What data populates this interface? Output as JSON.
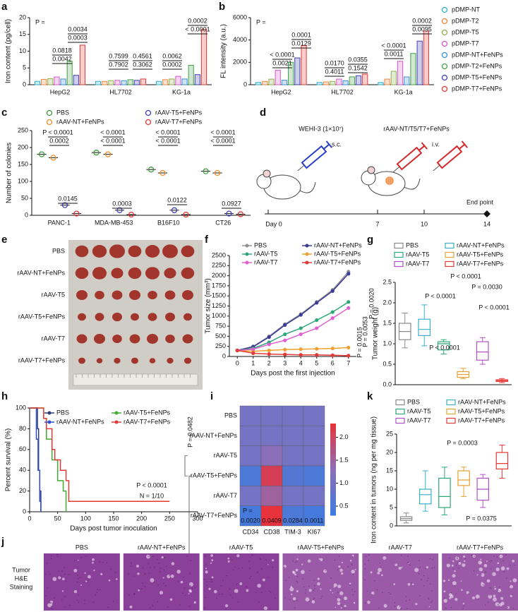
{
  "chart_data": [
    {
      "type": "bar",
      "label": "a",
      "ylabel": "Iron content (pg/cell)",
      "categories": [
        "HepG2",
        "HL7702",
        "KG-1a"
      ],
      "series": [
        {
          "color": "#2fb0cf",
          "values": [
            1.0,
            1.0,
            1.0
          ]
        },
        {
          "color": "#f0883e",
          "values": [
            1.6,
            1.0,
            1.5
          ]
        },
        {
          "color": "#8fae4f",
          "values": [
            1.8,
            1.2,
            1.7
          ]
        },
        {
          "color": "#d65ac8",
          "values": [
            2.3,
            1.3,
            2.5
          ]
        },
        {
          "color": "#3a8fd5",
          "values": [
            1.7,
            1.2,
            1.7
          ]
        },
        {
          "color": "#43a047",
          "values": [
            7.0,
            1.5,
            5.8
          ]
        },
        {
          "color": "#3f3fb5",
          "values": [
            2.8,
            1.3,
            3.0
          ]
        },
        {
          "color": "#e53935",
          "values": [
            11.8,
            1.7,
            16.5
          ]
        }
      ],
      "ylim": [
        0,
        20
      ],
      "yticks": [
        0,
        5,
        10,
        15,
        20
      ],
      "annotations": [
        "P =",
        "0.0818",
        "0.0042",
        "0.0034",
        "0.0003",
        "0.7599",
        "0.7902",
        "0.4561",
        "0.3062",
        "0.0062",
        "0.0002",
        "0.0002",
        "< 0.0001"
      ]
    },
    {
      "type": "bar",
      "label": "b",
      "ylabel": "FL intensity (a.u.)",
      "categories": [
        "HepG2",
        "HL7702",
        "KG-1a"
      ],
      "series": [
        {
          "name": "pDMP-NT",
          "color": "#2fb0cf",
          "values": [
            200,
            200,
            200
          ]
        },
        {
          "name": "pDMP-T2",
          "color": "#f0883e",
          "values": [
            300,
            250,
            500
          ]
        },
        {
          "name": "pDMP-T5",
          "color": "#8fae4f",
          "values": [
            500,
            300,
            1200
          ]
        },
        {
          "name": "pDMP-T7",
          "color": "#d65ac8",
          "values": [
            1300,
            500,
            2100
          ]
        },
        {
          "name": "pDMP-NT+FeNPs",
          "color": "#3a8fd5",
          "values": [
            400,
            350,
            700
          ]
        },
        {
          "name": "pDMP-T2+FeNPs",
          "color": "#43a047",
          "values": [
            2000,
            700,
            2800
          ]
        },
        {
          "name": "pDMP-T5+FeNPs",
          "color": "#3f3fb5",
          "values": [
            2400,
            800,
            3900
          ]
        },
        {
          "name": "pDMP-T7+FeNPs",
          "color": "#e53935",
          "values": [
            3500,
            950,
            4800
          ]
        }
      ],
      "ylim": [
        0,
        6000
      ],
      "yticks": [
        0,
        2000,
        4000,
        6000
      ],
      "annotations": [
        "P =",
        "< 0.0001",
        "0.0021",
        "0.0001",
        "0.0129",
        "0.0170",
        "0.4011",
        "0.0355",
        "0.1542",
        "< 0.0001",
        "0.0011",
        "0.0002",
        "0.0095"
      ]
    },
    {
      "type": "dot",
      "label": "c",
      "ylabel": "Number of colonies",
      "categories": [
        "PANC-1",
        "MDA-MB-453",
        "B16F10",
        "CT26"
      ],
      "series": [
        {
          "name": "PBS",
          "color": "#3a9d3a",
          "values": [
            180,
            185,
            135,
            130
          ]
        },
        {
          "name": "rAAV-NT+FeNPs",
          "color": "#f08c28",
          "values": [
            170,
            180,
            125,
            125
          ]
        },
        {
          "name": "rAAV-T5+FeNPs",
          "color": "#3c3cc0",
          "values": [
            30,
            15,
            15,
            5
          ]
        },
        {
          "name": "rAAV-T7+FeNPs",
          "color": "#e53935",
          "values": [
            5,
            2,
            2,
            3
          ]
        }
      ],
      "ylim": [
        0,
        250
      ],
      "yticks": [
        0,
        50,
        100,
        150,
        200,
        250
      ],
      "annotations": [
        "P < 0.0001",
        "0.0002",
        "< 0.0001",
        "< 0.0001",
        "< 0.0001",
        "< 0.0001",
        "< 0.0001",
        "< 0.0001",
        "0.0145",
        "0.0003",
        "0.0122",
        "0.0927"
      ]
    },
    {
      "type": "diagram",
      "label": "d",
      "texts": [
        "WEHI-3 (1×10⁷)",
        "s.c.",
        "rAAV-NT/T5/T7+FeNPs",
        "i.v.",
        "End point"
      ],
      "timeline": [
        "Day 0",
        "7",
        "10",
        "14"
      ]
    },
    {
      "type": "image",
      "label": "e",
      "rows": [
        "PBS",
        "rAAV-NT+FeNPs",
        "rAAV-T5",
        "rAAV-T5+FeNPs",
        "rAAV-T7",
        "rAAV-T7+FeNPs"
      ]
    },
    {
      "type": "line",
      "label": "f",
      "ylabel": "Tumor size (mm³)",
      "xlabel": "Days post the first injection",
      "x": [
        0,
        1,
        2,
        3,
        4,
        5,
        6,
        7
      ],
      "series": [
        {
          "name": "PBS",
          "color": "#909090",
          "values": [
            150,
            250,
            500,
            800,
            1050,
            1350,
            1650,
            2100
          ]
        },
        {
          "name": "rAAV-NT+FeNPs",
          "color": "#3a3a9a",
          "values": [
            150,
            240,
            480,
            780,
            1030,
            1330,
            1620,
            2050
          ]
        },
        {
          "name": "rAAV-T5",
          "color": "#2aa876",
          "values": [
            150,
            200,
            350,
            550,
            700,
            900,
            1100,
            1350
          ]
        },
        {
          "name": "rAAV-T5+FeNPs",
          "color": "#f0a030",
          "values": [
            150,
            130,
            150,
            170,
            180,
            190,
            200,
            220
          ]
        },
        {
          "name": "rAAV-T7",
          "color": "#e060d0",
          "values": [
            150,
            180,
            300,
            400,
            550,
            700,
            950,
            1200
          ]
        },
        {
          "name": "rAAV-T7+FeNPs",
          "color": "#e53935",
          "values": [
            150,
            80,
            60,
            50,
            40,
            40,
            30,
            20
          ]
        }
      ],
      "xlim": [
        -0.5,
        7.5
      ],
      "xticks": [
        0,
        1,
        2,
        3,
        4,
        5,
        6,
        7
      ],
      "ylim": [
        0,
        2500
      ],
      "yticks": [
        0,
        250,
        500,
        750,
        1000,
        1250,
        1500,
        1750,
        2000,
        2250,
        2500
      ],
      "annotations": [
        "P = 0.0020",
        "P = 0.0053",
        "P = 0.0015"
      ]
    },
    {
      "type": "box",
      "label": "g",
      "ylabel": "Tumor weight (g)",
      "boxes": [
        {
          "name": "PBS",
          "color": "#8a8a8a",
          "min": 0.9,
          "q1": 1.1,
          "median": 1.3,
          "q3": 1.5,
          "max": 1.75
        },
        {
          "name": "rAAV-NT+FeNPs",
          "color": "#3ab0c8",
          "min": 0.95,
          "q1": 1.2,
          "median": 1.35,
          "q3": 1.6,
          "max": 1.95
        },
        {
          "name": "rAAV-T5",
          "color": "#2aa876",
          "min": 0.75,
          "q1": 0.85,
          "median": 1.0,
          "q3": 1.05,
          "max": 1.1
        },
        {
          "name": "rAAV-T5+FeNPs",
          "color": "#e8a030",
          "min": 0.15,
          "q1": 0.18,
          "median": 0.25,
          "q3": 0.32,
          "max": 0.4
        },
        {
          "name": "rAAV-T7",
          "color": "#b050c8",
          "min": 0.5,
          "q1": 0.6,
          "median": 0.8,
          "q3": 1.05,
          "max": 1.15
        },
        {
          "name": "rAAV-T7+FeNPs",
          "color": "#e53935",
          "min": 0.05,
          "q1": 0.08,
          "median": 0.1,
          "q3": 0.12,
          "max": 0.15
        }
      ],
      "ylim": [
        0,
        2.5
      ],
      "yticks": [
        {
          "value": 0,
          "label": "0.0"
        },
        0.5,
        {
          "value": 1,
          "label": "1.0"
        },
        1.5,
        {
          "value": 2,
          "label": "2.0"
        },
        2.5
      ],
      "annotations": [
        "P < 0.0001",
        "P < 0.0001",
        "P = 0.0030",
        "P < 0.0001",
        "P < 0.0001"
      ]
    },
    {
      "type": "line",
      "label": "h",
      "ylabel": "Percent survival (%)",
      "xlabel": "Days post tumor inoculation",
      "series": [
        {
          "name": "PBS",
          "color": "#2c3e7a",
          "x": [
            0,
            14,
            14,
            16,
            16,
            18,
            18,
            20,
            20
          ],
          "values": [
            100,
            100,
            80,
            80,
            40,
            40,
            20,
            20,
            0
          ]
        },
        {
          "name": "rAAV-NT+FeNPs",
          "color": "#3050d0",
          "x": [
            0,
            12,
            12,
            15,
            15,
            18,
            18,
            20,
            20
          ],
          "values": [
            100,
            100,
            70,
            70,
            40,
            40,
            10,
            10,
            0
          ]
        },
        {
          "name": "rAAV-T5+FeNPs",
          "color": "#3fae2f",
          "x": [
            0,
            25,
            25,
            30,
            30,
            40,
            40,
            50,
            50,
            60,
            60,
            65,
            65
          ],
          "values": [
            100,
            100,
            90,
            90,
            70,
            70,
            50,
            50,
            30,
            30,
            20,
            20,
            0
          ]
        },
        {
          "name": "rAAV-T7+FeNPs",
          "color": "#e53935",
          "x": [
            0,
            25,
            25,
            30,
            30,
            40,
            40,
            45,
            45,
            55,
            55,
            65,
            65,
            70,
            70,
            250
          ],
          "values": [
            100,
            100,
            90,
            90,
            80,
            80,
            60,
            60,
            50,
            50,
            40,
            40,
            30,
            30,
            10,
            10
          ]
        }
      ],
      "xlim": [
        0,
        300
      ],
      "xticks": [
        0,
        50,
        100,
        150,
        200,
        250,
        300
      ],
      "ylim": [
        0,
        100
      ],
      "yticks": [
        0,
        20,
        40,
        60,
        80,
        100
      ],
      "annotations": [
        "P = 0.0482",
        "P < 0.0001",
        "N = 1/10"
      ]
    },
    {
      "type": "heatmap",
      "label": "i",
      "rows": [
        "PBS",
        "rAAV-NT+FeNPs",
        "rAAV-T5",
        "rAAV-T5+FeNPs",
        "rAAV-T7",
        "rAAV-T7+FeNPs"
      ],
      "columns": [
        "CD34",
        "CD38",
        "TIM-3",
        "KI67"
      ],
      "values": [
        [
          1.0,
          1.0,
          1.0,
          1.0
        ],
        [
          1.0,
          1.0,
          1.0,
          1.0
        ],
        [
          1.0,
          1.3,
          1.0,
          1.0
        ],
        [
          0.5,
          2.1,
          0.6,
          0.5
        ],
        [
          1.0,
          1.5,
          1.0,
          1.0
        ],
        [
          0.4,
          2.3,
          0.5,
          0.4
        ]
      ],
      "colormap": [
        "#3d7be0",
        "#8b6fb8",
        "#e8323c"
      ],
      "clim": [
        0.3,
        2.3
      ],
      "cticks": [
        0.5,
        {
          "value": 1,
          "label": "1.0"
        },
        1.5,
        {
          "value": 2,
          "label": "2.0"
        }
      ],
      "annotations": [
        "P =",
        "0.0020",
        "0.0409",
        "0.0284",
        "0.0011"
      ]
    },
    {
      "type": "box",
      "label": "k",
      "ylabel": "Iron content in tumors (ng per mg tissue)",
      "boxes": [
        {
          "name": "PBS",
          "color": "#8a8a8a",
          "min": 0.8,
          "q1": 1.5,
          "median": 2,
          "q3": 2.5,
          "max": 3.5
        },
        {
          "name": "rAAV-NT+FeNPs",
          "color": "#3ab0c8",
          "min": 4,
          "q1": 6,
          "median": 8.5,
          "q3": 10,
          "max": 15
        },
        {
          "name": "rAAV-T5",
          "color": "#2aa876",
          "min": 3,
          "q1": 5,
          "median": 8,
          "q3": 13,
          "max": 16
        },
        {
          "name": "rAAV-T5+FeNPs",
          "color": "#e8a030",
          "min": 8,
          "q1": 11,
          "median": 12.5,
          "q3": 15,
          "max": 16
        },
        {
          "name": "rAAV-T7",
          "color": "#b050c8",
          "min": 5,
          "q1": 7,
          "median": 10,
          "q3": 13,
          "max": 14
        },
        {
          "name": "rAAV-T7+FeNPs",
          "color": "#e53935",
          "min": 13,
          "q1": 15.5,
          "median": 17,
          "q3": 20,
          "max": 22
        }
      ],
      "ylim": [
        0,
        25
      ],
      "yticks": [
        0,
        5,
        10,
        15,
        20,
        25
      ],
      "annotations": [
        "P = 0.0003",
        "P = 0.0375"
      ]
    },
    {
      "type": "image",
      "label": "j",
      "columns": [
        "PBS",
        "rAAV-NT+FeNPs",
        "rAAV-T5",
        "rAAV-T5+FeNPs",
        "rAAV-T7",
        "rAAV-T7+FeNPs"
      ],
      "side_label": [
        "Tumor",
        "H&E",
        "Staining"
      ]
    }
  ]
}
